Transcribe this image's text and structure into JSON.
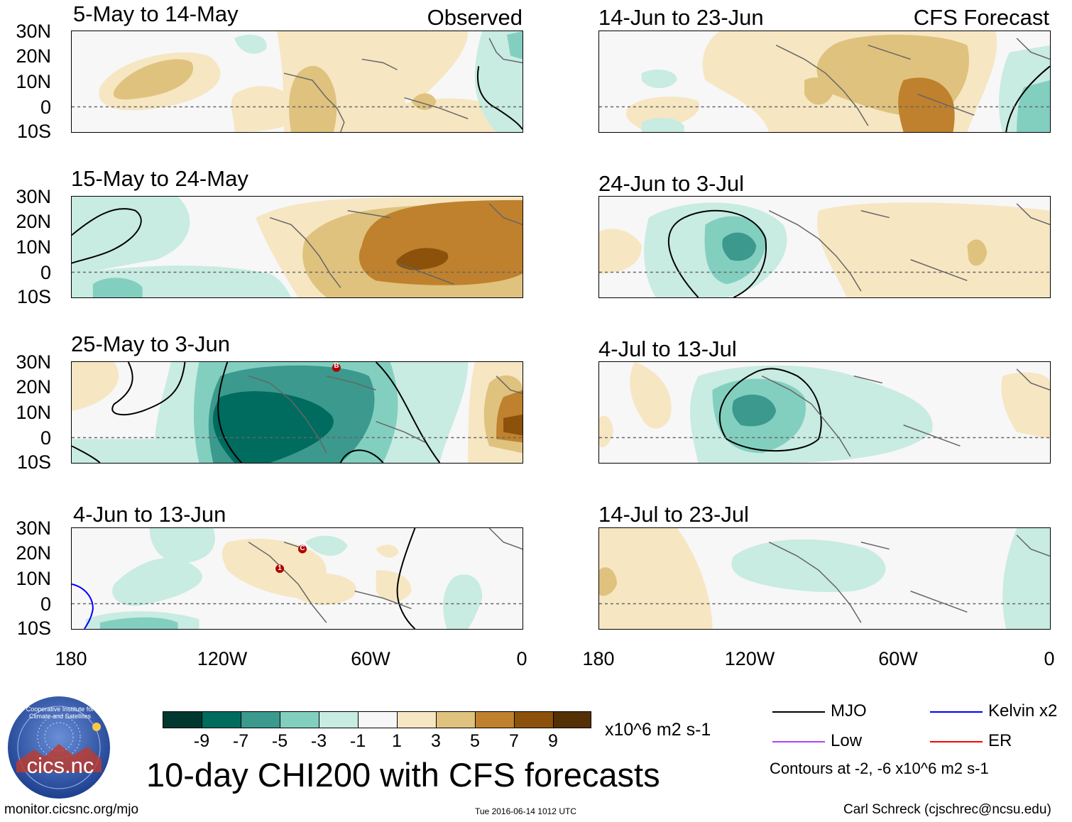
{
  "panels_left": [
    {
      "title": "5-May to 14-May",
      "tag": "Observed"
    },
    {
      "title": "15-May to 24-May",
      "tag": ""
    },
    {
      "title": "25-May to 3-Jun",
      "tag": ""
    },
    {
      "title": "4-Jun to 13-Jun",
      "tag": ""
    }
  ],
  "panels_right": [
    {
      "title": "14-Jun to 23-Jun",
      "tag": "CFS Forecast"
    },
    {
      "title": "24-Jun to 3-Jul",
      "tag": ""
    },
    {
      "title": "4-Jul to 13-Jul",
      "tag": ""
    },
    {
      "title": "14-Jul to 23-Jul",
      "tag": ""
    }
  ],
  "lat_labels": [
    "30N",
    "20N",
    "10N",
    "0",
    "10S"
  ],
  "lon_labels": [
    "180",
    "120W",
    "60W",
    "0"
  ],
  "storm_markers": [
    "B",
    "C",
    "1"
  ],
  "colorbar": {
    "labels": [
      "-9",
      "-7",
      "-5",
      "-3",
      "-1",
      "1",
      "3",
      "5",
      "7",
      "9"
    ],
    "colors": [
      "#00382f",
      "#006b5f",
      "#3b998d",
      "#82cfc0",
      "#c8ebe2",
      "#f7f7f7",
      "#f6e6c2",
      "#dfc27d",
      "#bf812d",
      "#8c510a",
      "#543005"
    ],
    "units": "x10^6 m2 s-1"
  },
  "legend": {
    "mjo": "MJO",
    "kelvin": "Kelvin x2",
    "low": "Low",
    "er": "ER",
    "contours_note": "Contours at -2, -6 x10^6 m2 s-1",
    "line_colors": {
      "mjo": "#000000",
      "kelvin": "#0000ff",
      "low": "#b040ff",
      "er": "#ff0000"
    }
  },
  "main_title": "10-day CHI200 with CFS forecasts",
  "logo_text": "cics.nc",
  "logo_ring_text": "Cooperative Institute for Climate and Satellites",
  "footer": {
    "url": "monitor.cicsnc.org/mjo",
    "timestamp": "Tue 2016-06-14 1012 UTC",
    "credit": "Carl Schreck (cjschrec@ncsu.edu)"
  }
}
